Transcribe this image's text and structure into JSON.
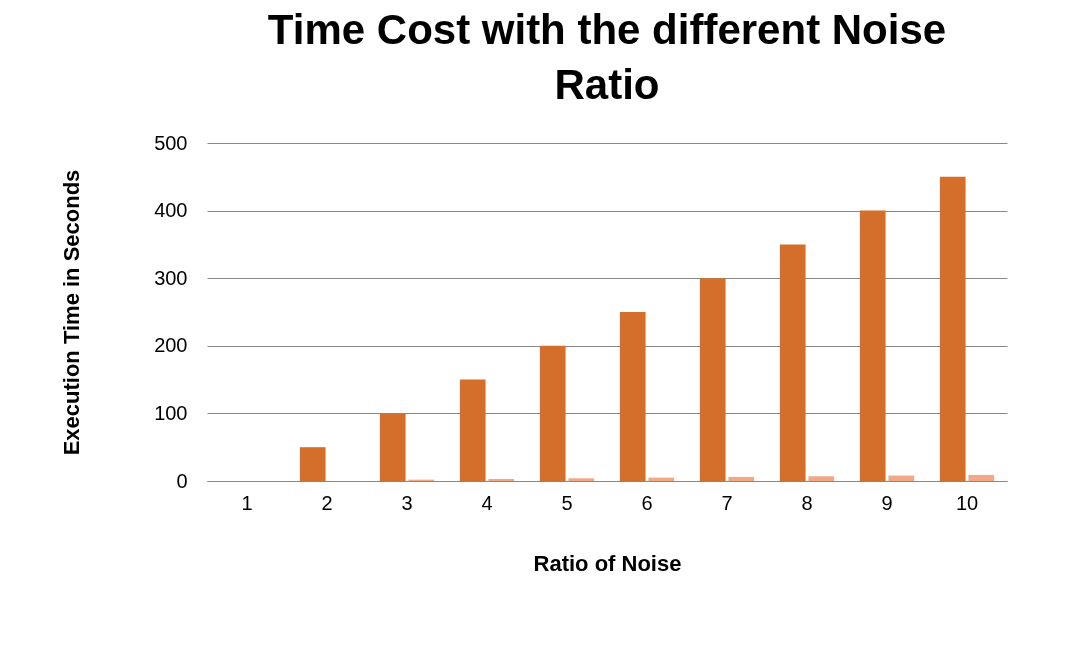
{
  "chart_data": {
    "type": "bar",
    "title": "Time Cost with the different Noise Ratio",
    "xlabel": "Ratio of Noise",
    "ylabel": "Execution Time in Seconds",
    "categories": [
      "1",
      "2",
      "3",
      "4",
      "5",
      "6",
      "7",
      "8",
      "9",
      "10"
    ],
    "series": [
      {
        "color": "#d46f2b",
        "values": [
          0,
          50,
          100,
          150,
          200,
          250,
          300,
          350,
          400,
          450
        ]
      },
      {
        "color": "#f0a888",
        "values": [
          0,
          0,
          2,
          3,
          4,
          5,
          6,
          7,
          8,
          9
        ]
      }
    ],
    "ylim": [
      0,
      500
    ],
    "yticks": [
      0,
      100,
      200,
      300,
      400,
      500
    ],
    "grid": "y",
    "legend": false
  }
}
